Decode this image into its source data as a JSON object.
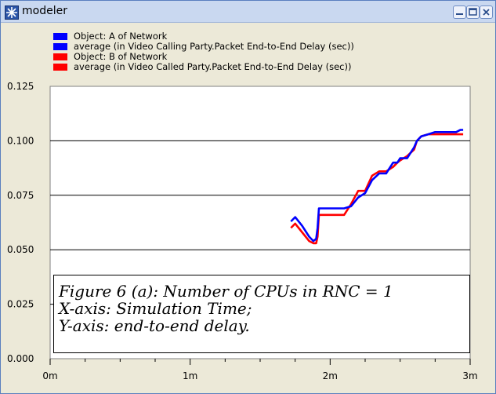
{
  "window": {
    "title": "modeler",
    "icon": "star-icon",
    "buttons": [
      "minimize-icon",
      "restore-icon",
      "close-icon"
    ]
  },
  "legend": [
    {
      "label": "Object: A of Network",
      "color": "#0000ff"
    },
    {
      "label": "average (in Video Calling Party.Packet End-to-End Delay (sec))",
      "color": "#0000ff"
    },
    {
      "label": "Object: B of Network",
      "color": "#ff0000"
    },
    {
      "label": "average (in Video Called Party.Packet End-to-End Delay (sec))",
      "color": "#ff0000"
    }
  ],
  "annotation": {
    "line1": "Figure 6 (a): Number of CPUs in RNC = 1",
    "line2": "X-axis: Simulation Time;",
    "line3": "Y-axis: end-to-end delay."
  },
  "chart_data": {
    "type": "line",
    "title": "",
    "xlabel": "",
    "ylabel": "",
    "xlim": [
      0,
      3
    ],
    "ylim": [
      0,
      0.125
    ],
    "x_ticks": [
      "0m",
      "1m",
      "2m",
      "3m"
    ],
    "y_ticks": [
      "0.000",
      "0.025",
      "0.050",
      "0.075",
      "0.100",
      "0.125"
    ],
    "grid": "horizontal",
    "series": [
      {
        "name": "average (in Video Calling Party.Packet End-to-End Delay (sec))",
        "color": "#0000ff",
        "x": [
          1.72,
          1.75,
          1.8,
          1.85,
          1.88,
          1.9,
          1.91,
          1.92,
          1.93,
          2.0,
          2.05,
          2.1,
          2.15,
          2.2,
          2.25,
          2.3,
          2.35,
          2.38,
          2.4,
          2.45,
          2.48,
          2.5,
          2.55,
          2.6,
          2.62,
          2.65,
          2.7,
          2.75,
          2.8,
          2.85,
          2.9,
          2.93,
          2.95
        ],
        "y": [
          0.063,
          0.065,
          0.061,
          0.056,
          0.054,
          0.055,
          0.06,
          0.069,
          0.069,
          0.069,
          0.069,
          0.069,
          0.07,
          0.074,
          0.076,
          0.082,
          0.085,
          0.085,
          0.085,
          0.09,
          0.09,
          0.092,
          0.092,
          0.097,
          0.1,
          0.102,
          0.103,
          0.104,
          0.104,
          0.104,
          0.104,
          0.105,
          0.105
        ]
      },
      {
        "name": "average (in Video Called Party.Packet End-to-End Delay (sec))",
        "color": "#ff0000",
        "x": [
          1.72,
          1.75,
          1.8,
          1.85,
          1.88,
          1.9,
          1.91,
          1.92,
          1.93,
          2.0,
          2.05,
          2.1,
          2.15,
          2.2,
          2.25,
          2.3,
          2.35,
          2.38,
          2.4,
          2.45,
          2.48,
          2.5,
          2.55,
          2.6,
          2.62,
          2.65,
          2.7,
          2.75,
          2.8,
          2.85,
          2.9,
          2.93,
          2.95
        ],
        "y": [
          0.06,
          0.062,
          0.058,
          0.054,
          0.053,
          0.053,
          0.056,
          0.066,
          0.066,
          0.066,
          0.066,
          0.066,
          0.071,
          0.077,
          0.077,
          0.084,
          0.086,
          0.086,
          0.086,
          0.088,
          0.09,
          0.091,
          0.093,
          0.096,
          0.1,
          0.102,
          0.103,
          0.103,
          0.103,
          0.103,
          0.103,
          0.103,
          0.103
        ]
      }
    ]
  }
}
